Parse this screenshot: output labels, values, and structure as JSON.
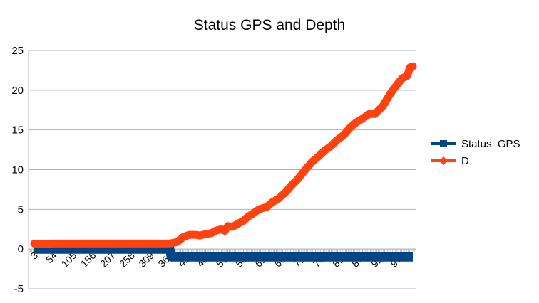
{
  "chart_data": {
    "type": "line",
    "title": "Status GPS and Depth",
    "xlabel": "",
    "ylabel": "",
    "ylim": [
      -5,
      25
    ],
    "yticks": [
      "-5",
      "0",
      "5",
      "10",
      "15",
      "20",
      "25"
    ],
    "x_range": [
      3,
      1000
    ],
    "xtick_labels": [
      "3",
      "54",
      "105",
      "156",
      "207",
      "258",
      "309",
      "360",
      "411",
      "462",
      "513",
      "564",
      "615",
      "666",
      "717",
      "768",
      "819",
      "870",
      "921",
      "972"
    ],
    "grid": true,
    "legend_position": "right",
    "series": [
      {
        "name": "Status_GPS",
        "color": "#004586",
        "marker": "square",
        "points": [
          [
            3,
            0
          ],
          [
            360,
            0
          ],
          [
            364,
            -1
          ],
          [
            1000,
            -1
          ]
        ]
      },
      {
        "name": "D",
        "color": "#ff420e",
        "marker": "diamond",
        "points": [
          [
            3,
            0.7
          ],
          [
            20,
            0.6
          ],
          [
            54,
            0.7
          ],
          [
            105,
            0.7
          ],
          [
            156,
            0.7
          ],
          [
            207,
            0.7
          ],
          [
            258,
            0.7
          ],
          [
            309,
            0.7
          ],
          [
            360,
            0.7
          ],
          [
            380,
            0.9
          ],
          [
            395,
            1.5
          ],
          [
            411,
            1.8
          ],
          [
            430,
            1.8
          ],
          [
            440,
            1.7
          ],
          [
            455,
            1.9
          ],
          [
            470,
            2.0
          ],
          [
            480,
            2.3
          ],
          [
            495,
            2.5
          ],
          [
            505,
            2.3
          ],
          [
            513,
            2.9
          ],
          [
            525,
            2.8
          ],
          [
            540,
            3.2
          ],
          [
            555,
            3.6
          ],
          [
            564,
            4.0
          ],
          [
            580,
            4.5
          ],
          [
            595,
            5.0
          ],
          [
            615,
            5.3
          ],
          [
            630,
            5.9
          ],
          [
            645,
            6.3
          ],
          [
            666,
            7.2
          ],
          [
            680,
            8.0
          ],
          [
            695,
            8.7
          ],
          [
            717,
            10.0
          ],
          [
            735,
            11.0
          ],
          [
            750,
            11.6
          ],
          [
            768,
            12.4
          ],
          [
            785,
            13.0
          ],
          [
            800,
            13.7
          ],
          [
            819,
            14.4
          ],
          [
            835,
            15.3
          ],
          [
            850,
            15.9
          ],
          [
            870,
            16.5
          ],
          [
            885,
            17.0
          ],
          [
            900,
            17.0
          ],
          [
            921,
            18.0
          ],
          [
            940,
            19.5
          ],
          [
            955,
            20.5
          ],
          [
            972,
            21.5
          ],
          [
            985,
            21.8
          ],
          [
            993,
            22.9
          ],
          [
            1000,
            23.0
          ]
        ]
      }
    ]
  }
}
